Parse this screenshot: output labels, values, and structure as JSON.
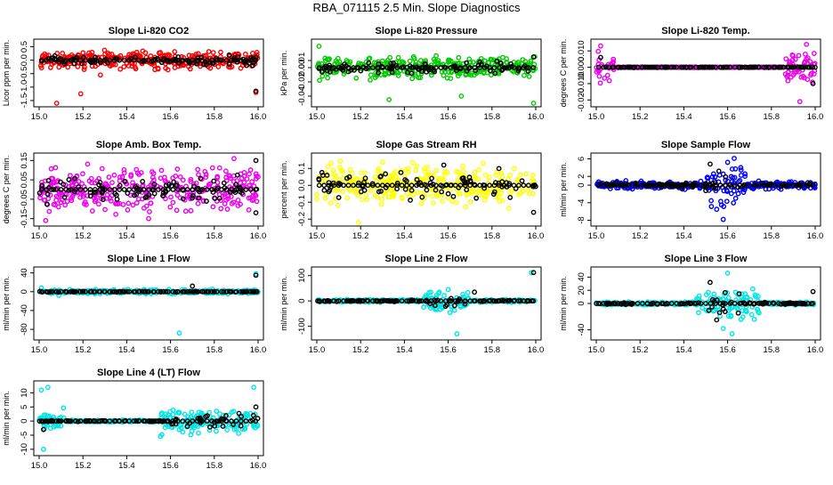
{
  "figure": {
    "title": "RBA_071115  2.5 Min. Slope Diagnostics"
  },
  "chart_data": [
    {
      "type": "scatter",
      "title": "Slope Li-820 CO2",
      "ylabel": "Licor ppm per min.",
      "xlim": [
        15.0,
        16.0
      ],
      "ylim": [
        -1.6,
        0.65
      ],
      "xticks": [
        "15.0",
        "15.2",
        "15.4",
        "15.6",
        "15.8",
        "16.0"
      ],
      "yticks": [
        {
          "v": -1.5,
          "label": "-1.5"
        },
        {
          "v": -1.0,
          "label": "-1.0"
        },
        {
          "v": -0.5,
          "label": "-0.5"
        },
        {
          "v": 0.0,
          "label": "0.0"
        },
        {
          "v": 0.5,
          "label": "0.5"
        }
      ],
      "series": [
        {
          "name": "all",
          "color": "#ff0000",
          "center": 0.0,
          "spread": 0.45,
          "points": [
            [
              15.19,
              -1.25
            ],
            [
              15.08,
              -1.6
            ],
            [
              15.99,
              -1.2
            ],
            [
              15.28,
              -0.55
            ]
          ]
        },
        {
          "name": "selected",
          "color": "#000000",
          "center": 0.0,
          "spread": 0.25,
          "points": [
            [
              15.99,
              -1.15
            ]
          ]
        }
      ]
    },
    {
      "type": "scatter",
      "title": "Slope Li-820 Pressure",
      "ylabel": "kPa per min.",
      "xlim": [
        15.0,
        16.0
      ],
      "ylim": [
        -0.05,
        0.035
      ],
      "xticks": [
        "15.0",
        "15.2",
        "15.4",
        "15.6",
        "15.8",
        "16.0"
      ],
      "yticks": [
        {
          "v": -0.04,
          "label": "-0.04"
        },
        {
          "v": -0.02,
          "label": "-0.02"
        },
        {
          "v": 0.0,
          "label": "0.00"
        },
        {
          "v": 0.01,
          "label": "0.01"
        }
      ],
      "series": [
        {
          "name": "all",
          "color": "#00cc00",
          "center": 0.0,
          "spread": 0.022,
          "points": [
            [
              15.01,
              0.03
            ],
            [
              15.33,
              -0.045
            ],
            [
              15.66,
              -0.04
            ],
            [
              15.99,
              -0.05
            ]
          ]
        },
        {
          "name": "selected",
          "color": "#000000",
          "center": 0.0,
          "spread": 0.012,
          "points": [
            [
              15.99,
              0.015
            ]
          ]
        }
      ]
    },
    {
      "type": "scatter",
      "title": "Slope Li-820 Temp.",
      "ylabel": "degrees C per min.",
      "xlim": [
        15.0,
        16.0
      ],
      "ylim": [
        -0.022,
        0.015
      ],
      "xticks": [
        "15.0",
        "15.2",
        "15.4",
        "15.6",
        "15.8",
        "16.0"
      ],
      "yticks": [
        {
          "v": -0.02,
          "label": "-0.020"
        },
        {
          "v": -0.01,
          "label": "-0.010"
        },
        {
          "v": 0.0,
          "label": "0.000"
        },
        {
          "v": 0.01,
          "label": "0.010"
        }
      ],
      "series": [
        {
          "name": "all",
          "color": "#ee00ee",
          "center": 0.0,
          "spread": 0.0003,
          "edges": [
            [
              15.0,
              15.08,
              0.012
            ],
            [
              15.86,
              16.0,
              0.012
            ]
          ],
          "points": [
            [
              15.02,
              0.013
            ],
            [
              15.93,
              -0.021
            ],
            [
              15.96,
              0.014
            ]
          ]
        },
        {
          "name": "selected",
          "color": "#000000",
          "center": 0.0,
          "spread": 0.0002,
          "points": [
            [
              15.99,
              -0.01
            ],
            [
              15.02,
              0.006
            ]
          ]
        }
      ]
    },
    {
      "type": "scatter",
      "title": "Slope Amb. Box Temp.",
      "ylabel": "degrees C per min.",
      "xlim": [
        15.0,
        16.0
      ],
      "ylim": [
        -0.17,
        0.17
      ],
      "xticks": [
        "15.0",
        "15.2",
        "15.4",
        "15.6",
        "15.8",
        "16.0"
      ],
      "yticks": [
        {
          "v": -0.15,
          "label": "-0.15"
        },
        {
          "v": -0.05,
          "label": "-0.05"
        },
        {
          "v": 0.05,
          "label": "0.05"
        },
        {
          "v": 0.15,
          "label": "0.15"
        }
      ],
      "series": [
        {
          "name": "all",
          "color": "#ee00ee",
          "center": 0.0,
          "spread": 0.16,
          "points": [
            [
              15.89,
              0.16
            ],
            [
              15.03,
              -0.16
            ],
            [
              15.5,
              -0.15
            ]
          ]
        },
        {
          "name": "selected",
          "color": "#000000",
          "center": 0.0,
          "spread": 0.1,
          "points": [
            [
              15.99,
              0.15
            ],
            [
              15.99,
              -0.12
            ]
          ]
        }
      ]
    },
    {
      "type": "scatter",
      "title": "Slope Gas Stream RH",
      "ylabel": "percent per min.",
      "xlim": [
        15.0,
        16.0
      ],
      "ylim": [
        -0.22,
        0.17
      ],
      "xticks": [
        "15.0",
        "15.2",
        "15.4",
        "15.6",
        "15.8",
        "16.0"
      ],
      "yticks": [
        {
          "v": -0.2,
          "label": "-0.2"
        },
        {
          "v": -0.1,
          "label": "-0.1"
        },
        {
          "v": 0.0,
          "label": "0.0"
        },
        {
          "v": 0.1,
          "label": "0.1"
        }
      ],
      "series": [
        {
          "name": "all",
          "color": "#ffff00",
          "center": 0.0,
          "spread": 0.16,
          "points": [
            [
              15.19,
              -0.22
            ]
          ]
        },
        {
          "name": "selected",
          "color": "#000000",
          "center": 0.0,
          "spread": 0.12,
          "points": [
            [
              15.99,
              -0.16
            ],
            [
              15.58,
              0.12
            ]
          ]
        }
      ]
    },
    {
      "type": "scatter",
      "title": "Slope Sample Flow",
      "ylabel": "ml/min per min.",
      "xlim": [
        15.0,
        16.0
      ],
      "ylim": [
        -8.5,
        6.5
      ],
      "xticks": [
        "15.0",
        "15.2",
        "15.4",
        "15.6",
        "15.8",
        "16.0"
      ],
      "yticks": [
        {
          "v": -8,
          "label": "-8"
        },
        {
          "v": -4,
          "label": "-4"
        },
        {
          "v": 0,
          "label": "0"
        },
        {
          "v": 2,
          "label": "2"
        },
        {
          "v": 6,
          "label": "6"
        }
      ],
      "series": [
        {
          "name": "all",
          "color": "#0000ff",
          "center": 0.0,
          "spread": 1.2,
          "burst": [
            15.5,
            15.68,
            7.0
          ],
          "points": [
            [
              15.63,
              6.1
            ],
            [
              15.6,
              5.2
            ],
            [
              15.58,
              -7.8
            ],
            [
              15.55,
              -5.5
            ],
            [
              15.66,
              4.0
            ]
          ]
        },
        {
          "name": "selected",
          "color": "#000000",
          "center": 0.0,
          "spread": 0.8,
          "burst": [
            15.5,
            15.6,
            4.0
          ],
          "points": [
            [
              15.52,
              4.8
            ],
            [
              15.56,
              3.2
            ]
          ]
        }
      ]
    },
    {
      "type": "scatter",
      "title": "Slope Line 1 Flow",
      "ylabel": "ml/min per min.",
      "xlim": [
        15.0,
        16.0
      ],
      "ylim": [
        -95,
        45
      ],
      "xticks": [
        "15.0",
        "15.2",
        "15.4",
        "15.6",
        "15.8",
        "16.0"
      ],
      "yticks": [
        {
          "v": -80,
          "label": "-80"
        },
        {
          "v": -40,
          "label": "-40"
        },
        {
          "v": 0,
          "label": "0"
        },
        {
          "v": 40,
          "label": "40"
        }
      ],
      "series": [
        {
          "name": "all",
          "color": "#00e5e5",
          "center": 0.0,
          "spread": 6,
          "points": [
            [
              15.64,
              -88
            ],
            [
              15.99,
              38
            ],
            [
              15.01,
              8
            ],
            [
              15.09,
              -8
            ]
          ]
        },
        {
          "name": "selected",
          "color": "#000000",
          "center": 0.0,
          "spread": 1,
          "points": [
            [
              15.99,
              35
            ],
            [
              15.7,
              12
            ]
          ]
        }
      ]
    },
    {
      "type": "scatter",
      "title": "Slope Line 2 Flow",
      "ylabel": "ml/min per min.",
      "xlim": [
        15.0,
        16.0
      ],
      "ylim": [
        -140,
        120
      ],
      "xticks": [
        "15.0",
        "15.2",
        "15.4",
        "15.6",
        "15.8",
        "16.0"
      ],
      "yticks": [
        {
          "v": -100,
          "label": "-100"
        },
        {
          "v": 0,
          "label": "0"
        },
        {
          "v": 100,
          "label": "100"
        }
      ],
      "series": [
        {
          "name": "all",
          "color": "#00e5e5",
          "center": 0.0,
          "spread": 8,
          "burst": [
            15.48,
            15.7,
            55
          ],
          "points": [
            [
              15.64,
              -130
            ],
            [
              15.98,
              112
            ],
            [
              15.6,
              45
            ]
          ]
        },
        {
          "name": "selected",
          "color": "#000000",
          "center": 0.0,
          "spread": 4,
          "burst": [
            15.5,
            15.7,
            35
          ],
          "points": [
            [
              15.99,
              112
            ],
            [
              15.72,
              35
            ]
          ]
        }
      ]
    },
    {
      "type": "scatter",
      "title": "Slope Line 3 Flow",
      "ylabel": "ml/min per min.",
      "xlim": [
        15.0,
        16.0
      ],
      "ylim": [
        -50,
        50
      ],
      "xticks": [
        "15.0",
        "15.2",
        "15.4",
        "15.6",
        "15.8",
        "16.0"
      ],
      "yticks": [
        {
          "v": -40,
          "label": "-40"
        },
        {
          "v": 0,
          "label": "0"
        },
        {
          "v": 20,
          "label": "20"
        },
        {
          "v": 40,
          "label": "40"
        }
      ],
      "series": [
        {
          "name": "all",
          "color": "#00e5e5",
          "center": 0.0,
          "spread": 3,
          "burst": [
            15.45,
            15.75,
            30
          ],
          "points": [
            [
              15.62,
              -46
            ],
            [
              15.6,
              46
            ],
            [
              15.58,
              -38
            ]
          ]
        },
        {
          "name": "selected",
          "color": "#000000",
          "center": 0.0,
          "spread": 2,
          "burst": [
            15.48,
            15.66,
            25
          ],
          "points": [
            [
              15.52,
              32
            ],
            [
              15.99,
              18
            ],
            [
              15.55,
              -25
            ]
          ]
        }
      ]
    },
    {
      "type": "scatter",
      "title": "Slope Line 4 (LT) Flow",
      "ylabel": "ml/min per min.",
      "xlim": [
        15.0,
        16.0
      ],
      "ylim": [
        -11,
        13
      ],
      "xticks": [
        "15.0",
        "15.2",
        "15.4",
        "15.6",
        "15.8",
        "16.0"
      ],
      "yticks": [
        {
          "v": -10,
          "label": "-10"
        },
        {
          "v": -5,
          "label": "-5"
        },
        {
          "v": 0,
          "label": "0"
        },
        {
          "v": 5,
          "label": "5"
        },
        {
          "v": 10,
          "label": "10"
        }
      ],
      "series": [
        {
          "name": "all",
          "color": "#00e5e5",
          "center": 0.0,
          "spread": 0.5,
          "edges": [
            [
              15.0,
              15.12,
              5
            ],
            [
              15.55,
              16.0,
              6
            ]
          ],
          "points": [
            [
              15.04,
              12
            ],
            [
              15.01,
              11
            ],
            [
              15.02,
              -10
            ],
            [
              15.98,
              12
            ]
          ]
        },
        {
          "name": "selected",
          "color": "#000000",
          "center": 0.0,
          "spread": 0.3,
          "edges": [
            [
              15.6,
              16.0,
              4
            ]
          ],
          "points": [
            [
              15.99,
              5
            ],
            [
              15.02,
              -3
            ]
          ]
        }
      ]
    }
  ]
}
